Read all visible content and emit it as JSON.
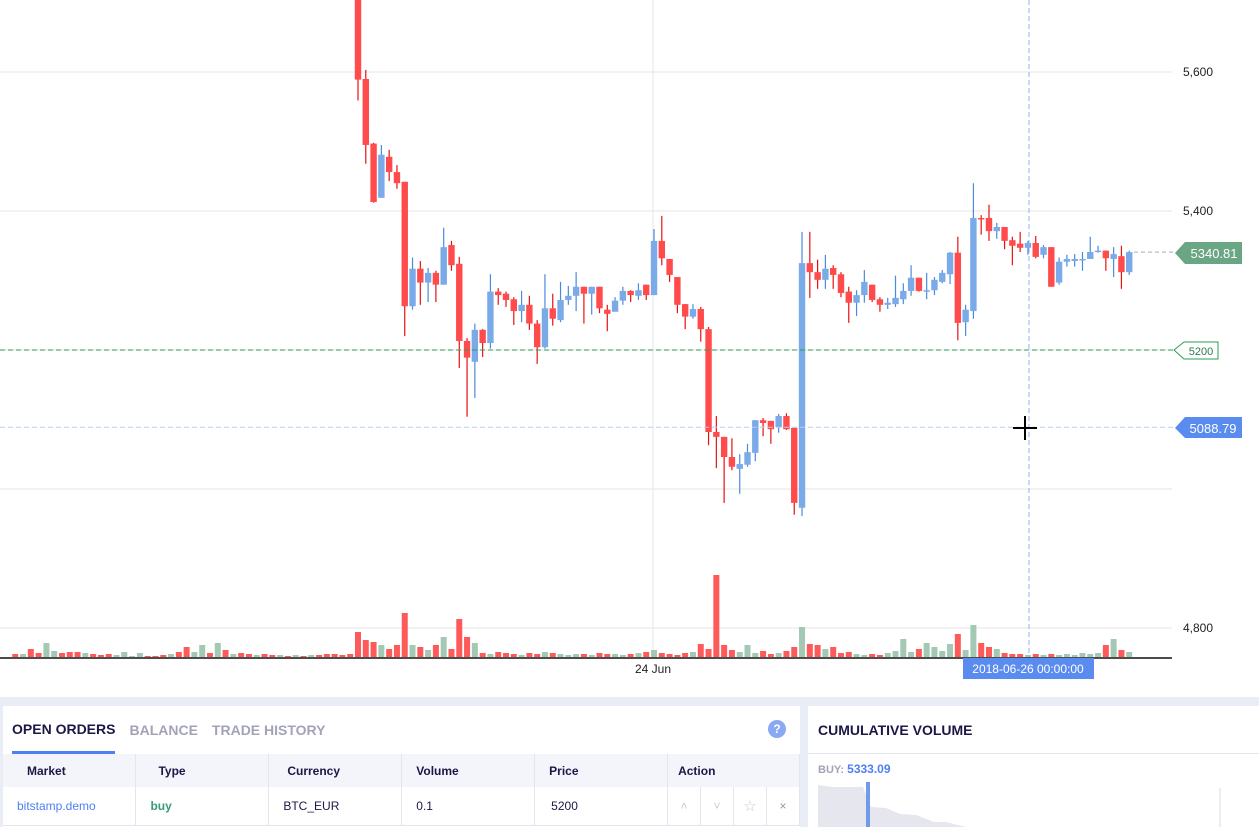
{
  "chart_data": {
    "type": "candlestick",
    "ylim": [
      4770,
      5705
    ],
    "y_ticks": [
      "5,600",
      "5,400",
      "4,800"
    ],
    "y_tick_values": [
      5600,
      5400,
      4800
    ],
    "x_ticks": [
      "24 Jun"
    ],
    "grid": true,
    "colors": {
      "up": "#7aaae8",
      "down": "#ff4b4b",
      "vol_up": "#a3c9b4",
      "vol_down": "#ff5a5a"
    },
    "candles": [
      [
        5718,
        5740,
        5559,
        5589
      ],
      [
        5590,
        5603,
        5468,
        5495
      ],
      [
        5497,
        5498,
        5412,
        5413
      ],
      [
        5419,
        5495,
        5419,
        5481
      ],
      [
        5478,
        5488,
        5443,
        5456
      ],
      [
        5456,
        5466,
        5432,
        5440
      ],
      [
        5442,
        5442,
        5220,
        5263
      ],
      [
        5263,
        5333,
        5258,
        5317
      ],
      [
        5317,
        5328,
        5265,
        5297
      ],
      [
        5297,
        5318,
        5269,
        5311
      ],
      [
        5311,
        5314,
        5269,
        5294
      ],
      [
        5294,
        5376,
        5294,
        5348
      ],
      [
        5351,
        5357,
        5314,
        5322
      ],
      [
        5324,
        5334,
        5174,
        5213
      ],
      [
        5213,
        5217,
        5104,
        5189
      ],
      [
        5183,
        5238,
        5131,
        5229
      ],
      [
        5229,
        5230,
        5190,
        5210
      ],
      [
        5210,
        5309,
        5202,
        5284
      ],
      [
        5284,
        5289,
        5265,
        5279
      ],
      [
        5281,
        5284,
        5262,
        5272
      ],
      [
        5273,
        5276,
        5236,
        5256
      ],
      [
        5256,
        5285,
        5240,
        5265
      ],
      [
        5265,
        5278,
        5229,
        5238
      ],
      [
        5238,
        5243,
        5180,
        5204
      ],
      [
        5204,
        5309,
        5202,
        5260
      ],
      [
        5260,
        5281,
        5235,
        5245
      ],
      [
        5243,
        5298,
        5240,
        5272
      ],
      [
        5272,
        5292,
        5265,
        5278
      ],
      [
        5278,
        5312,
        5256,
        5291
      ],
      [
        5291,
        5291,
        5238,
        5281
      ],
      [
        5281,
        5291,
        5251,
        5291
      ],
      [
        5291,
        5291,
        5253,
        5260
      ],
      [
        5258,
        5265,
        5227,
        5252
      ],
      [
        5255,
        5276,
        5263,
        5271
      ],
      [
        5271,
        5291,
        5265,
        5285
      ],
      [
        5285,
        5286,
        5269,
        5279
      ],
      [
        5278,
        5296,
        5272,
        5286
      ],
      [
        5294,
        5294,
        5272,
        5279
      ],
      [
        5279,
        5374,
        5279,
        5357
      ],
      [
        5357,
        5393,
        5322,
        5332
      ],
      [
        5331,
        5331,
        5298,
        5308
      ],
      [
        5305,
        5305,
        5253,
        5265
      ],
      [
        5266,
        5266,
        5230,
        5248
      ],
      [
        5248,
        5266,
        5245,
        5259
      ],
      [
        5259,
        5262,
        5212,
        5230
      ],
      [
        5230,
        5233,
        5063,
        5082
      ],
      [
        5082,
        5105,
        5030,
        5075
      ],
      [
        5075,
        5075,
        4980,
        5046
      ],
      [
        5046,
        5073,
        5027,
        5032
      ],
      [
        5029,
        5050,
        4993,
        5036
      ],
      [
        5035,
        5065,
        5032,
        5053
      ],
      [
        5052,
        5099,
        5040,
        5099
      ],
      [
        5099,
        5102,
        5076,
        5095
      ],
      [
        5098,
        5098,
        5065,
        5086
      ],
      [
        5089,
        5108,
        5081,
        5105
      ],
      [
        5105,
        5109,
        5085,
        5086
      ],
      [
        5088,
        5088,
        4963,
        4980
      ],
      [
        4973,
        5370,
        4961,
        5325
      ],
      [
        5325,
        5370,
        5275,
        5312
      ],
      [
        5312,
        5330,
        5288,
        5301
      ],
      [
        5301,
        5337,
        5288,
        5317
      ],
      [
        5318,
        5322,
        5288,
        5308
      ],
      [
        5309,
        5312,
        5276,
        5282
      ],
      [
        5284,
        5291,
        5239,
        5268
      ],
      [
        5268,
        5286,
        5249,
        5279
      ],
      [
        5279,
        5315,
        5268,
        5298
      ],
      [
        5294,
        5294,
        5269,
        5272
      ],
      [
        5273,
        5276,
        5255,
        5265
      ],
      [
        5265,
        5275,
        5259,
        5268
      ],
      [
        5266,
        5307,
        5262,
        5275
      ],
      [
        5273,
        5296,
        5266,
        5285
      ],
      [
        5285,
        5322,
        5278,
        5304
      ],
      [
        5304,
        5304,
        5284,
        5285
      ],
      [
        5285,
        5311,
        5273,
        5286
      ],
      [
        5286,
        5305,
        5279,
        5301
      ],
      [
        5298,
        5315,
        5296,
        5311
      ],
      [
        5309,
        5341,
        5295,
        5340
      ],
      [
        5340,
        5363,
        5214,
        5239
      ],
      [
        5240,
        5265,
        5220,
        5258
      ],
      [
        5256,
        5440,
        5245,
        5390
      ],
      [
        5390,
        5394,
        5366,
        5389
      ],
      [
        5390,
        5409,
        5357,
        5371
      ],
      [
        5371,
        5383,
        5360,
        5377
      ],
      [
        5377,
        5377,
        5345,
        5357
      ],
      [
        5358,
        5363,
        5322,
        5350
      ],
      [
        5353,
        5370,
        5341,
        5347
      ],
      [
        5347,
        5357,
        5337,
        5354
      ],
      [
        5354,
        5364,
        5332,
        5334
      ],
      [
        5337,
        5351,
        5332,
        5348
      ],
      [
        5348,
        5348,
        5291,
        5291
      ],
      [
        5297,
        5333,
        5294,
        5327
      ],
      [
        5327,
        5337,
        5320,
        5331
      ],
      [
        5328,
        5338,
        5320,
        5331
      ],
      [
        5330,
        5341,
        5314,
        5331
      ],
      [
        5331,
        5363,
        5331,
        5341
      ],
      [
        5341,
        5350,
        5340,
        5343
      ],
      [
        5343,
        5343,
        5314,
        5332
      ],
      [
        5331,
        5348,
        5305,
        5338
      ],
      [
        5335,
        5350,
        5288,
        5312
      ],
      [
        5312,
        5343,
        5308,
        5340.81
      ]
    ],
    "candle_volumes": [
      25,
      17,
      15,
      12,
      8,
      12,
      44,
      12,
      10,
      7,
      12,
      20,
      8,
      38,
      20,
      14,
      4,
      3,
      5,
      4,
      3,
      2,
      4,
      3,
      5,
      4,
      3,
      2,
      3,
      3,
      2,
      4,
      3,
      3,
      2,
      3,
      4,
      5,
      7,
      4,
      3,
      2,
      4,
      5,
      13,
      8,
      82,
      12,
      7,
      5,
      12,
      4,
      6,
      3,
      4,
      6,
      10,
      30,
      13,
      12,
      8,
      10,
      4,
      5,
      3,
      2,
      3,
      2,
      4,
      6,
      18,
      5,
      8,
      14,
      10,
      6,
      13,
      23,
      7,
      32,
      14,
      10,
      8,
      4,
      3,
      3,
      2,
      3,
      2,
      3,
      2,
      3,
      2,
      4,
      3,
      4,
      12,
      18,
      7,
      5
    ],
    "earlier_volumes": [
      {
        "v": 3,
        "up": false
      },
      {
        "v": 3,
        "up": true
      },
      {
        "v": 8,
        "up": false
      },
      {
        "v": 4,
        "up": false
      },
      {
        "v": 14,
        "up": true
      },
      {
        "v": 6,
        "up": true
      },
      {
        "v": 4,
        "up": false
      },
      {
        "v": 5,
        "up": false
      },
      {
        "v": 5,
        "up": false
      },
      {
        "v": 4,
        "up": true
      },
      {
        "v": 3,
        "up": false
      },
      {
        "v": 2,
        "up": false
      },
      {
        "v": 3,
        "up": false
      },
      {
        "v": 2,
        "up": true
      },
      {
        "v": 5,
        "up": true
      },
      {
        "v": 1,
        "up": true
      },
      {
        "v": 4,
        "up": true
      },
      {
        "v": 1,
        "up": false
      },
      {
        "v": 1,
        "up": false
      },
      {
        "v": 2,
        "up": false
      },
      {
        "v": 3,
        "up": true
      },
      {
        "v": 5,
        "up": false
      },
      {
        "v": 10,
        "up": false
      },
      {
        "v": 5,
        "up": true
      },
      {
        "v": 12,
        "up": true
      },
      {
        "v": 4,
        "up": false
      },
      {
        "v": 14,
        "up": true
      },
      {
        "v": 7,
        "up": false
      },
      {
        "v": 3,
        "up": true
      },
      {
        "v": 4,
        "up": false
      },
      {
        "v": 3,
        "up": false
      },
      {
        "v": 2,
        "up": true
      },
      {
        "v": 3,
        "up": false
      },
      {
        "v": 2,
        "up": false
      },
      {
        "v": 2,
        "up": true
      },
      {
        "v": 1,
        "up": false
      },
      {
        "v": 2,
        "up": true
      },
      {
        "v": 1,
        "up": false
      },
      {
        "v": 2,
        "up": true
      },
      {
        "v": 2,
        "up": false
      },
      {
        "v": 3,
        "up": false
      },
      {
        "v": 3,
        "up": false
      },
      {
        "v": 2,
        "up": false
      },
      {
        "v": 3,
        "up": false
      }
    ],
    "last_price": "5340.81",
    "last_price_value": 5340.81,
    "order_line": "5200",
    "order_line_value": 5200,
    "crosshair_price": "5088.79",
    "crosshair_price_value": 5088.79,
    "crosshair_time": "2018-06-26 00:00:00"
  },
  "orders_panel": {
    "tabs": [
      "OPEN ORDERS",
      "BALANCE",
      "TRADE HISTORY"
    ],
    "help": "?",
    "columns": [
      "Market",
      "Type",
      "Currency",
      "Volume",
      "Price",
      "Action"
    ],
    "rows": [
      {
        "market": "bitstamp.demo",
        "type": "buy",
        "currency": "BTC_EUR",
        "volume": "0.1",
        "price": "5200"
      }
    ],
    "actions": {
      "up": "˄",
      "down": "˅",
      "star": "☆",
      "close": "×"
    }
  },
  "cumulative": {
    "title": "CUMULATIVE VOLUME",
    "buy_label": "BUY:",
    "buy_value": "5333.09"
  }
}
